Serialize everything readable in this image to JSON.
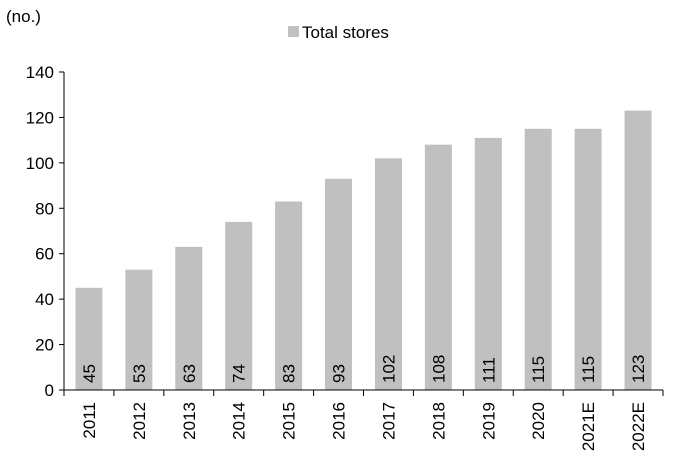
{
  "chart_data": {
    "type": "bar",
    "unit_label": "(no.)",
    "legend": "Total stores",
    "categories": [
      "2011",
      "2012",
      "2013",
      "2014",
      "2015",
      "2016",
      "2017",
      "2018",
      "2019",
      "2020",
      "2021E",
      "2022E"
    ],
    "series": [
      {
        "name": "Total stores",
        "values": [
          45,
          53,
          63,
          74,
          83,
          93,
          102,
          108,
          111,
          115,
          115,
          123
        ]
      }
    ],
    "ylim": [
      0,
      140
    ],
    "yticks": [
      0,
      20,
      40,
      60,
      80,
      100,
      120,
      140
    ],
    "grid": false,
    "legend_position": "top-center",
    "bar_color": "#c0c0c0",
    "value_labels": "inside-bottom-rotated"
  }
}
